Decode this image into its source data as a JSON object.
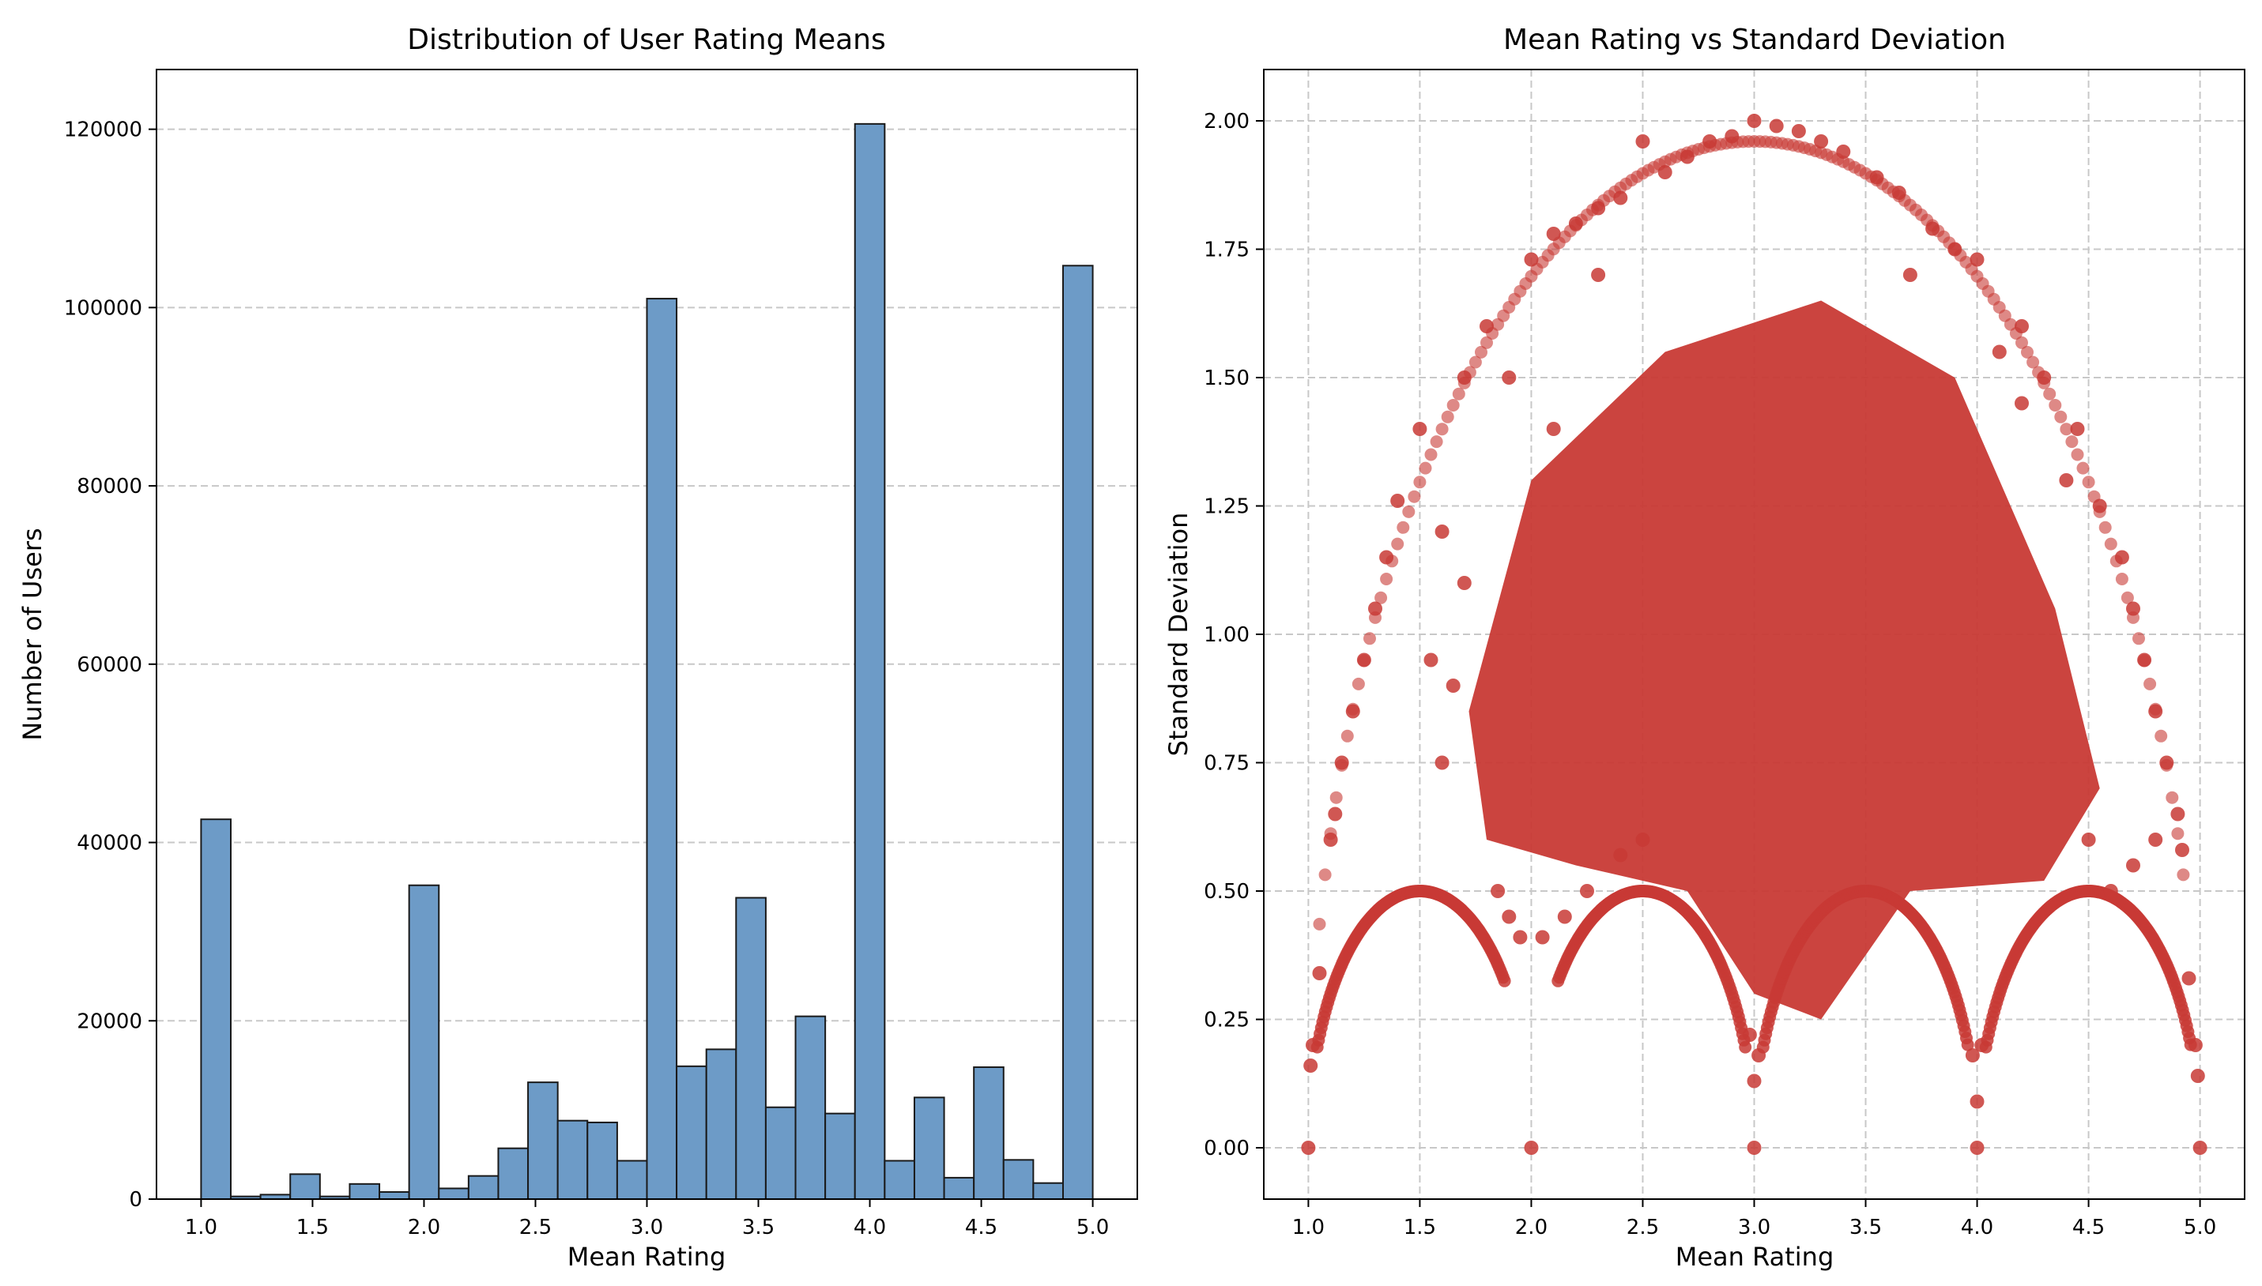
{
  "chart_data": [
    {
      "type": "bar",
      "title": "Distribution of User Rating Means",
      "xlabel": "Mean Rating",
      "ylabel": "Number of Users",
      "xlim": [
        0.8,
        5.2
      ],
      "ylim": [
        0,
        126700
      ],
      "xticks": [
        "1.0",
        "1.5",
        "2.0",
        "2.5",
        "3.0",
        "3.5",
        "4.0",
        "4.5",
        "5.0"
      ],
      "yticks": [
        "0",
        "20000",
        "40000",
        "60000",
        "80000",
        "100000",
        "120000"
      ],
      "grid": "y-dashed",
      "bin_edges": [
        1.0,
        1.1333,
        1.2667,
        1.4,
        1.5333,
        1.6667,
        1.8,
        1.9333,
        2.0667,
        2.2,
        2.3333,
        2.4667,
        2.6,
        2.7333,
        2.8667,
        3.0,
        3.1333,
        3.2667,
        3.4,
        3.5333,
        3.6667,
        3.8,
        3.9333,
        4.0667,
        4.2,
        4.3333,
        4.4667,
        4.6,
        4.7333,
        4.8667,
        5.0
      ],
      "values": [
        42600,
        300,
        500,
        2800,
        300,
        1700,
        800,
        35200,
        1200,
        2600,
        5700,
        13100,
        8800,
        8600,
        4300,
        101000,
        14900,
        16800,
        33800,
        10300,
        20500,
        9600,
        120600,
        4300,
        11400,
        2400,
        14800,
        4400,
        1800,
        104700
      ],
      "colors": {
        "bar": "#6d9bc7",
        "edge": "#1a1a1a"
      }
    },
    {
      "type": "scatter",
      "title": "Mean Rating vs Standard Deviation",
      "xlabel": "Mean Rating",
      "ylabel": "Standard Deviation",
      "xlim": [
        0.8,
        5.2
      ],
      "ylim": [
        -0.1,
        2.1
      ],
      "xticks": [
        "1.0",
        "1.5",
        "2.0",
        "2.5",
        "3.0",
        "3.5",
        "4.0",
        "4.5",
        "5.0"
      ],
      "yticks": [
        "0.00",
        "0.25",
        "0.50",
        "0.75",
        "1.00",
        "1.25",
        "1.50",
        "1.75",
        "2.00"
      ],
      "grid": "both-dashed",
      "colors": {
        "point": "#c83a35"
      },
      "dense_region": [
        [
          1.72,
          0.85
        ],
        [
          2.0,
          1.3
        ],
        [
          2.6,
          1.55
        ],
        [
          3.3,
          1.65
        ],
        [
          3.9,
          1.5
        ],
        [
          4.35,
          1.05
        ],
        [
          4.55,
          0.7
        ],
        [
          4.3,
          0.52
        ],
        [
          3.7,
          0.5
        ],
        [
          3.3,
          0.25
        ],
        [
          3.0,
          0.3
        ],
        [
          2.7,
          0.5
        ],
        [
          2.2,
          0.55
        ],
        [
          1.8,
          0.6
        ]
      ],
      "points": [
        [
          1.0,
          0.0
        ],
        [
          2.0,
          0.0
        ],
        [
          3.0,
          0.0
        ],
        [
          4.0,
          0.0
        ],
        [
          5.0,
          0.0
        ],
        [
          3.0,
          2.0
        ],
        [
          2.9,
          1.97
        ],
        [
          3.1,
          1.99
        ],
        [
          3.2,
          1.98
        ],
        [
          2.8,
          1.96
        ],
        [
          3.3,
          1.96
        ],
        [
          3.4,
          1.94
        ],
        [
          2.7,
          1.93
        ],
        [
          2.6,
          1.9
        ],
        [
          2.5,
          1.96
        ],
        [
          3.55,
          1.89
        ],
        [
          3.65,
          1.86
        ],
        [
          2.4,
          1.85
        ],
        [
          2.3,
          1.83
        ],
        [
          3.8,
          1.79
        ],
        [
          2.2,
          1.8
        ],
        [
          2.0,
          1.73
        ],
        [
          4.0,
          1.73
        ],
        [
          3.9,
          1.75
        ],
        [
          2.1,
          1.78
        ],
        [
          1.8,
          1.6
        ],
        [
          4.2,
          1.6
        ],
        [
          1.7,
          1.5
        ],
        [
          4.3,
          1.5
        ],
        [
          1.5,
          1.4
        ],
        [
          4.45,
          1.4
        ],
        [
          1.4,
          1.26
        ],
        [
          4.55,
          1.25
        ],
        [
          1.35,
          1.15
        ],
        [
          4.65,
          1.15
        ],
        [
          1.3,
          1.05
        ],
        [
          4.7,
          1.05
        ],
        [
          1.25,
          0.95
        ],
        [
          4.75,
          0.95
        ],
        [
          1.2,
          0.85
        ],
        [
          4.8,
          0.85
        ],
        [
          1.15,
          0.75
        ],
        [
          4.85,
          0.75
        ],
        [
          1.12,
          0.65
        ],
        [
          4.9,
          0.65
        ],
        [
          1.1,
          0.6
        ],
        [
          4.92,
          0.58
        ],
        [
          1.05,
          0.34
        ],
        [
          1.02,
          0.2
        ],
        [
          1.01,
          0.16
        ],
        [
          4.98,
          0.2
        ],
        [
          4.99,
          0.14
        ],
        [
          4.95,
          0.33
        ],
        [
          3.0,
          0.13
        ],
        [
          3.02,
          0.18
        ],
        [
          2.98,
          0.22
        ],
        [
          4.0,
          0.09
        ],
        [
          3.98,
          0.18
        ],
        [
          4.02,
          0.2
        ],
        [
          1.6,
          0.75
        ],
        [
          1.65,
          0.9
        ],
        [
          1.55,
          0.95
        ],
        [
          1.7,
          1.1
        ],
        [
          1.6,
          1.2
        ],
        [
          1.9,
          0.45
        ],
        [
          1.95,
          0.41
        ],
        [
          2.05,
          0.41
        ],
        [
          1.85,
          0.5
        ],
        [
          2.15,
          0.45
        ],
        [
          2.25,
          0.5
        ],
        [
          2.4,
          0.57
        ],
        [
          2.5,
          0.6
        ],
        [
          4.6,
          0.5
        ],
        [
          4.7,
          0.55
        ],
        [
          4.5,
          0.6
        ],
        [
          4.8,
          0.6
        ],
        [
          4.4,
          1.3
        ],
        [
          4.2,
          1.45
        ],
        [
          4.1,
          1.55
        ],
        [
          3.7,
          1.7
        ],
        [
          2.3,
          1.7
        ],
        [
          1.9,
          1.5
        ],
        [
          2.1,
          1.4
        ]
      ]
    }
  ]
}
